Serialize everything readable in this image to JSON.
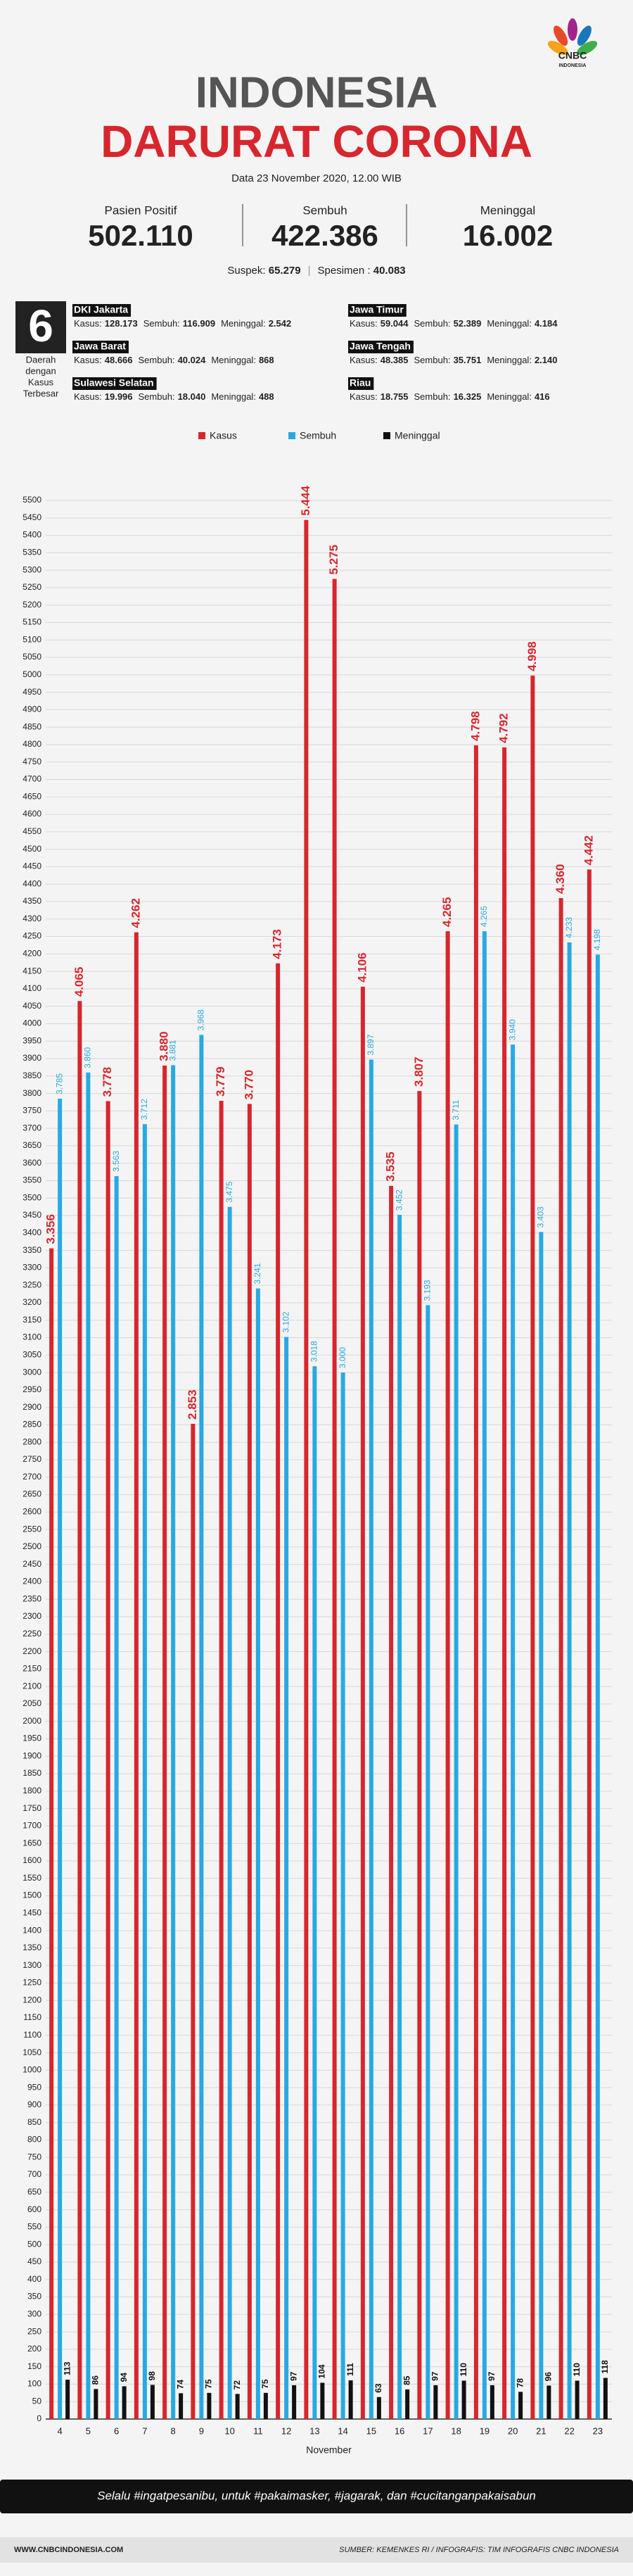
{
  "header": {
    "title_1": "INDONESIA",
    "title_2": "DARURAT CORONA",
    "date": "Data 23 November 2020, 12.00 WIB",
    "logo": "CNBC",
    "logo_sub": "INDONESIA"
  },
  "stats": [
    {
      "label": "Pasien Positif",
      "value": "502.110"
    },
    {
      "label": "Sembuh",
      "value": "422.386"
    },
    {
      "label": "Meninggal",
      "value": "16.002"
    }
  ],
  "suspek": {
    "label": "Suspek:",
    "value": "65.279"
  },
  "spesimen": {
    "label": "Spesimen :",
    "value": "40.083"
  },
  "regions": {
    "count": "6",
    "caption": [
      "Daerah",
      "dengan",
      "Kasus",
      "Terbesar"
    ],
    "labels": {
      "kasus": "Kasus:",
      "sembuh": "Sembuh:",
      "meninggal": "Meninggal:"
    },
    "items": [
      {
        "name": "DKI Jakarta",
        "kasus": "128.173",
        "sembuh": "116.909",
        "meninggal": "2.542"
      },
      {
        "name": "Jawa Timur",
        "kasus": "59.044",
        "sembuh": "52.389",
        "meninggal": "4.184"
      },
      {
        "name": "Jawa Barat",
        "kasus": "48.666",
        "sembuh": "40.024",
        "meninggal": "868"
      },
      {
        "name": "Jawa Tengah",
        "kasus": "48.385",
        "sembuh": "35.751",
        "meninggal": "2.140"
      },
      {
        "name": "Sulawesi Selatan",
        "kasus": "19.996",
        "sembuh": "18.040",
        "meninggal": "488"
      },
      {
        "name": "Riau",
        "kasus": "18.755",
        "sembuh": "16.325",
        "meninggal": "416"
      }
    ]
  },
  "chart_data": {
    "type": "bar",
    "x_label": "November",
    "categories": [
      4,
      5,
      6,
      7,
      8,
      9,
      10,
      11,
      12,
      13,
      14,
      15,
      16,
      17,
      18,
      19,
      20,
      21,
      22,
      23
    ],
    "series": [
      {
        "name": "Kasus",
        "color": "#d7262d",
        "values": [
          3356,
          4065,
          3778,
          4262,
          3880,
          2853,
          3779,
          3770,
          4173,
          5444,
          5275,
          4106,
          3535,
          3807,
          4265,
          4798,
          4792,
          4998,
          4360,
          4442
        ],
        "value_labels": [
          "3.356",
          "4.065",
          "3.778",
          "4.262",
          "3.880",
          "2.853",
          "3.779",
          "3.770",
          "4.173",
          "5.444",
          "5.275",
          "4.106",
          "3.535",
          "3.807",
          "4.265",
          "4.798",
          "4.792",
          "4.998",
          "4.360",
          "4.442"
        ]
      },
      {
        "name": "Sembuh",
        "color": "#29a9e1",
        "values": [
          3785,
          3860,
          3563,
          3712,
          3881,
          3968,
          3475,
          3241,
          3102,
          3018,
          3000,
          3897,
          3452,
          3193,
          3711,
          4265,
          3940,
          3403,
          4233,
          4198
        ],
        "value_labels": [
          "3.785",
          "3.860",
          "3.563",
          "3.712",
          "3.881",
          "3.968",
          "3.475",
          "3.241",
          "3.102",
          "3.018",
          "3.000",
          "3.897",
          "3.452",
          "3.193",
          "3.711",
          "4.265",
          "3.940",
          "3.403",
          "4.233",
          "4.198"
        ]
      },
      {
        "name": "Meninggal",
        "color": "#111111",
        "values": [
          113,
          86,
          94,
          98,
          74,
          75,
          72,
          75,
          97,
          104,
          111,
          63,
          85,
          97,
          110,
          97,
          78,
          96,
          110,
          118
        ]
      }
    ],
    "ylim": [
      0,
      5500
    ],
    "yticks": [
      0,
      50,
      100,
      150,
      200,
      250,
      300,
      350,
      400,
      450,
      500,
      550,
      600,
      650,
      700,
      750,
      800,
      850,
      900,
      950,
      1000,
      1050,
      1100,
      1150,
      1200,
      1250,
      1300,
      1350,
      1400,
      1450,
      1500,
      1550,
      1600,
      1650,
      1700,
      1750,
      1800,
      1850,
      1900,
      1950,
      2000,
      2050,
      2100,
      2150,
      2200,
      2250,
      2300,
      2350,
      2400,
      2450,
      2500,
      2550,
      2600,
      2650,
      2700,
      2750,
      2800,
      2850,
      2900,
      2950,
      3000,
      3050,
      3100,
      3150,
      3200,
      3250,
      3300,
      3350,
      3400,
      3450,
      3500,
      3550,
      3600,
      3650,
      3700,
      3750,
      3800,
      3850,
      3900,
      3950,
      4000,
      4050,
      4100,
      4150,
      4200,
      4250,
      4300,
      4350,
      4400,
      4450,
      4500,
      4550,
      4600,
      4650,
      4700,
      4750,
      4800,
      4850,
      4900,
      4950,
      5000,
      5050,
      5100,
      5150,
      5200,
      5250,
      5300,
      5350,
      5400,
      5450,
      5500
    ],
    "grid": true
  },
  "footer": {
    "slogan": "Selalu #ingatpesanibu, untuk #pakaimasker, #jagarak, dan #cucitanganpakaisabun",
    "website": "WWW.CNBCINDONESIA.COM",
    "source": "SUMBER: KEMENKES RI / INFOGRAFIS: TIM INFOGRAFIS CNBC INDONESIA"
  }
}
